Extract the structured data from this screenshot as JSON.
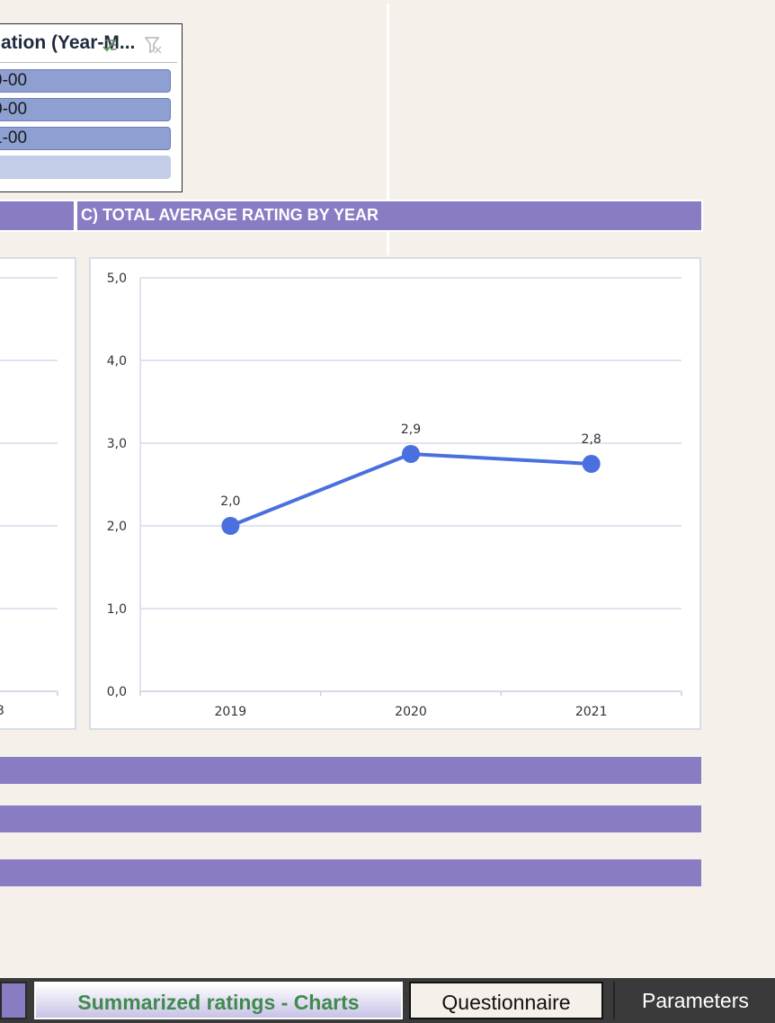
{
  "slicer": {
    "title": "ation (Year-M...",
    "items": [
      {
        "label": "9-00",
        "selected": true
      },
      {
        "label": "0-00",
        "selected": true
      },
      {
        "label": "1-00",
        "selected": true
      },
      {
        "label": "",
        "selected": false
      }
    ]
  },
  "section_c": {
    "title": "C) TOTAL AVERAGE RATING BY YEAR"
  },
  "left_chart": {
    "partial_tick": "3"
  },
  "chart_data": {
    "type": "line",
    "title": "",
    "xlabel": "",
    "ylabel": "",
    "categories": [
      "2019",
      "2020",
      "2021"
    ],
    "series": [
      {
        "values": [
          2.0,
          2.87,
          2.75
        ],
        "labels": [
          "2,0",
          "2,9",
          "2,8"
        ],
        "color": "#4a6fde"
      }
    ],
    "ylim": [
      0,
      5
    ],
    "y_ticks": [
      "0,0",
      "1,0",
      "2,0",
      "3,0",
      "4,0",
      "5,0"
    ],
    "grid": true,
    "legend": "none"
  },
  "tabs": {
    "active_label": "Summarized ratings - Charts",
    "questionnaire_label": "Questionnaire",
    "parameters_label": "Parameters"
  },
  "colors": {
    "background": "#f5f0ea",
    "header_purple": "#8a7cc3",
    "slicer_item": "#8e9fd2",
    "slicer_item_empty": "#c3cde7",
    "line": "#4a6fde",
    "active_tab_text": "#3f8a4f"
  }
}
